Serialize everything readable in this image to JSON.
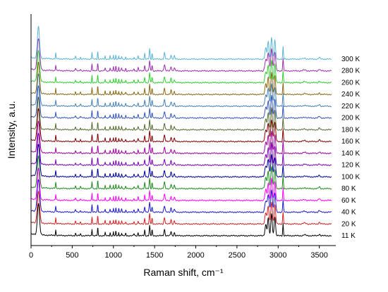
{
  "chart_data": {
    "type": "line",
    "xlabel": "Raman shift, cm⁻¹",
    "ylabel": "Intensity, a.u.",
    "xlim": [
      0,
      3700
    ],
    "x_ticks": [
      0,
      500,
      1000,
      1500,
      2000,
      2500,
      3000,
      3500
    ],
    "y_ticks_shown": false,
    "grid": false,
    "legend": "none (each spectrum labeled at right end)",
    "stacked_offset": true,
    "series": [
      {
        "name": "11 K",
        "color": "#000000"
      },
      {
        "name": "20 K",
        "color": "#d62020"
      },
      {
        "name": "40 K",
        "color": "#1a1acc"
      },
      {
        "name": "60 K",
        "color": "#ff00ff"
      },
      {
        "name": "80 K",
        "color": "#1f8a1f"
      },
      {
        "name": "100 K",
        "color": "#000099"
      },
      {
        "name": "120 K",
        "color": "#7a00b3"
      },
      {
        "name": "140 K",
        "color": "#a000a0"
      },
      {
        "name": "160 K",
        "color": "#800000"
      },
      {
        "name": "180 K",
        "color": "#556b2f"
      },
      {
        "name": "200 K",
        "color": "#3355bb"
      },
      {
        "name": "220 K",
        "color": "#4682b4"
      },
      {
        "name": "240 K",
        "color": "#8b6914"
      },
      {
        "name": "260 K",
        "color": "#32cd32"
      },
      {
        "name": "280 K",
        "color": "#9b30ac"
      },
      {
        "name": "300 K",
        "color": "#5ab4d6"
      }
    ],
    "peaks_cm-1": [
      {
        "x": 90,
        "height": 1.0,
        "width": 18
      },
      {
        "x": 300,
        "height": 0.18,
        "width": 5
      },
      {
        "x": 540,
        "height": 0.08,
        "width": 6
      },
      {
        "x": 600,
        "height": 0.06,
        "width": 6
      },
      {
        "x": 740,
        "height": 0.22,
        "width": 5
      },
      {
        "x": 810,
        "height": 0.26,
        "width": 5
      },
      {
        "x": 900,
        "height": 0.1,
        "width": 5
      },
      {
        "x": 960,
        "height": 0.1,
        "width": 5
      },
      {
        "x": 1000,
        "height": 0.12,
        "width": 4
      },
      {
        "x": 1030,
        "height": 0.16,
        "width": 4
      },
      {
        "x": 1065,
        "height": 0.12,
        "width": 4
      },
      {
        "x": 1100,
        "height": 0.09,
        "width": 5
      },
      {
        "x": 1150,
        "height": 0.08,
        "width": 5
      },
      {
        "x": 1250,
        "height": 0.07,
        "width": 6
      },
      {
        "x": 1300,
        "height": 0.1,
        "width": 6
      },
      {
        "x": 1380,
        "height": 0.18,
        "width": 6
      },
      {
        "x": 1440,
        "height": 0.32,
        "width": 7
      },
      {
        "x": 1470,
        "height": 0.18,
        "width": 6
      },
      {
        "x": 1620,
        "height": 0.2,
        "width": 9
      },
      {
        "x": 1700,
        "height": 0.14,
        "width": 8
      },
      {
        "x": 1740,
        "height": 0.1,
        "width": 8
      },
      {
        "x": 2850,
        "height": 0.35,
        "width": 14
      },
      {
        "x": 2880,
        "height": 0.55,
        "width": 12
      },
      {
        "x": 2920,
        "height": 0.7,
        "width": 12
      },
      {
        "x": 2960,
        "height": 0.6,
        "width": 12
      },
      {
        "x": 3060,
        "height": 0.38,
        "width": 6
      },
      {
        "x": 3320,
        "height": 0.03,
        "width": 20
      },
      {
        "x": 3500,
        "height": 0.05,
        "width": 12
      }
    ]
  }
}
